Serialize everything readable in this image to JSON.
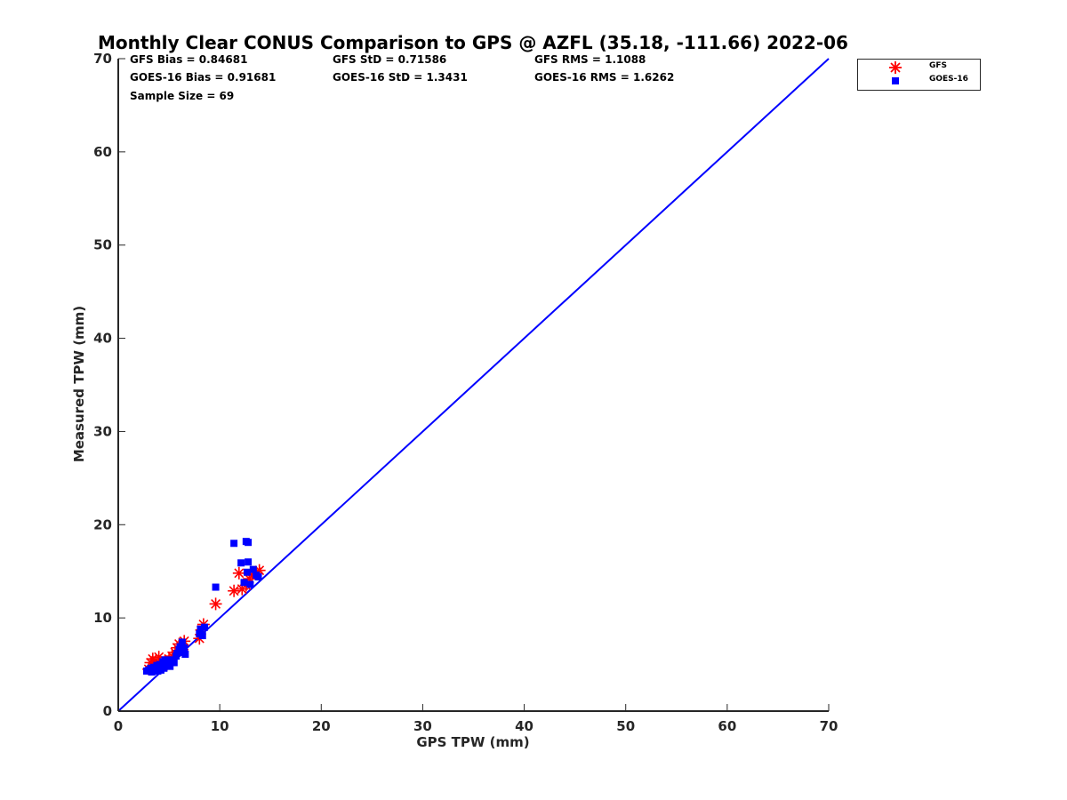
{
  "title": "Monthly Clear CONUS Comparison to GPS @ AZFL (35.18, -111.66) 2022-06",
  "stats": {
    "gfs_bias": "GFS Bias = 0.84681",
    "gfs_std": "GFS StD = 0.71586",
    "gfs_rms": "GFS RMS = 1.1088",
    "goes_bias": "GOES-16 Bias = 0.91681",
    "goes_std": "GOES-16 StD = 1.3431",
    "goes_rms": "GOES-16 RMS = 1.6262",
    "sample_size": "Sample Size = 69"
  },
  "legend": {
    "gfs": "GFS",
    "goes": "GOES-16"
  },
  "colors": {
    "gfs": "#ff0000",
    "goes": "#0000ff",
    "line": "#0000ff",
    "axis": "#262626"
  },
  "chart_data": {
    "type": "scatter",
    "title": "Monthly Clear CONUS Comparison to GPS @ AZFL (35.18, -111.66) 2022-06",
    "xlabel": "GPS TPW (mm)",
    "ylabel": "Measured TPW (mm)",
    "xlim": [
      0,
      70
    ],
    "ylim": [
      0,
      70
    ],
    "xticks": [
      0,
      10,
      20,
      30,
      40,
      50,
      60,
      70
    ],
    "yticks": [
      0,
      10,
      20,
      30,
      40,
      50,
      60,
      70
    ],
    "reference_line": {
      "x": [
        0,
        70
      ],
      "y": [
        0,
        70
      ]
    },
    "series": [
      {
        "name": "GFS",
        "marker": "asterisk",
        "points": [
          [
            3.0,
            4.5
          ],
          [
            3.2,
            5.2
          ],
          [
            3.4,
            5.6
          ],
          [
            3.5,
            4.8
          ],
          [
            3.7,
            5.4
          ],
          [
            3.9,
            4.6
          ],
          [
            4.0,
            5.8
          ],
          [
            4.2,
            4.9
          ],
          [
            4.4,
            5.1
          ],
          [
            4.6,
            5.4
          ],
          [
            4.8,
            5.0
          ],
          [
            5.0,
            5.6
          ],
          [
            5.3,
            5.9
          ],
          [
            5.6,
            6.3
          ],
          [
            5.8,
            6.8
          ],
          [
            6.0,
            7.2
          ],
          [
            6.3,
            6.6
          ],
          [
            6.5,
            7.5
          ],
          [
            8.0,
            7.8
          ],
          [
            8.2,
            8.7
          ],
          [
            8.4,
            9.3
          ],
          [
            9.6,
            11.5
          ],
          [
            11.4,
            12.9
          ],
          [
            11.9,
            14.8
          ],
          [
            12.2,
            13.1
          ],
          [
            12.6,
            13.5
          ],
          [
            12.9,
            14.2
          ],
          [
            13.2,
            14.6
          ],
          [
            13.6,
            14.9
          ],
          [
            13.9,
            15.1
          ]
        ]
      },
      {
        "name": "GOES-16",
        "marker": "square",
        "points": [
          [
            2.8,
            4.3
          ],
          [
            3.0,
            4.4
          ],
          [
            3.2,
            4.6
          ],
          [
            3.3,
            4.2
          ],
          [
            3.5,
            4.7
          ],
          [
            3.6,
            4.4
          ],
          [
            3.8,
            4.9
          ],
          [
            3.9,
            4.3
          ],
          [
            4.0,
            4.6
          ],
          [
            4.1,
            5.0
          ],
          [
            4.2,
            4.4
          ],
          [
            4.3,
            4.8
          ],
          [
            4.4,
            5.3
          ],
          [
            4.5,
            4.6
          ],
          [
            4.6,
            5.5
          ],
          [
            4.7,
            4.9
          ],
          [
            4.8,
            5.1
          ],
          [
            5.0,
            5.2
          ],
          [
            5.1,
            4.8
          ],
          [
            5.3,
            5.5
          ],
          [
            5.5,
            5.2
          ],
          [
            5.7,
            5.9
          ],
          [
            5.8,
            6.2
          ],
          [
            6.0,
            6.6
          ],
          [
            6.1,
            6.9
          ],
          [
            6.2,
            6.3
          ],
          [
            6.3,
            7.4
          ],
          [
            6.5,
            6.8
          ],
          [
            6.6,
            6.1
          ],
          [
            8.0,
            8.3
          ],
          [
            8.1,
            8.8
          ],
          [
            8.3,
            8.1
          ],
          [
            8.5,
            9.0
          ],
          [
            9.6,
            13.3
          ],
          [
            11.4,
            18.0
          ],
          [
            12.1,
            15.9
          ],
          [
            12.4,
            13.8
          ],
          [
            12.6,
            18.2
          ],
          [
            12.8,
            16.0
          ],
          [
            12.8,
            18.1
          ],
          [
            13.0,
            13.6
          ],
          [
            13.3,
            15.2
          ],
          [
            13.6,
            14.6
          ],
          [
            13.8,
            14.4
          ],
          [
            12.7,
            14.9
          ]
        ]
      }
    ]
  }
}
